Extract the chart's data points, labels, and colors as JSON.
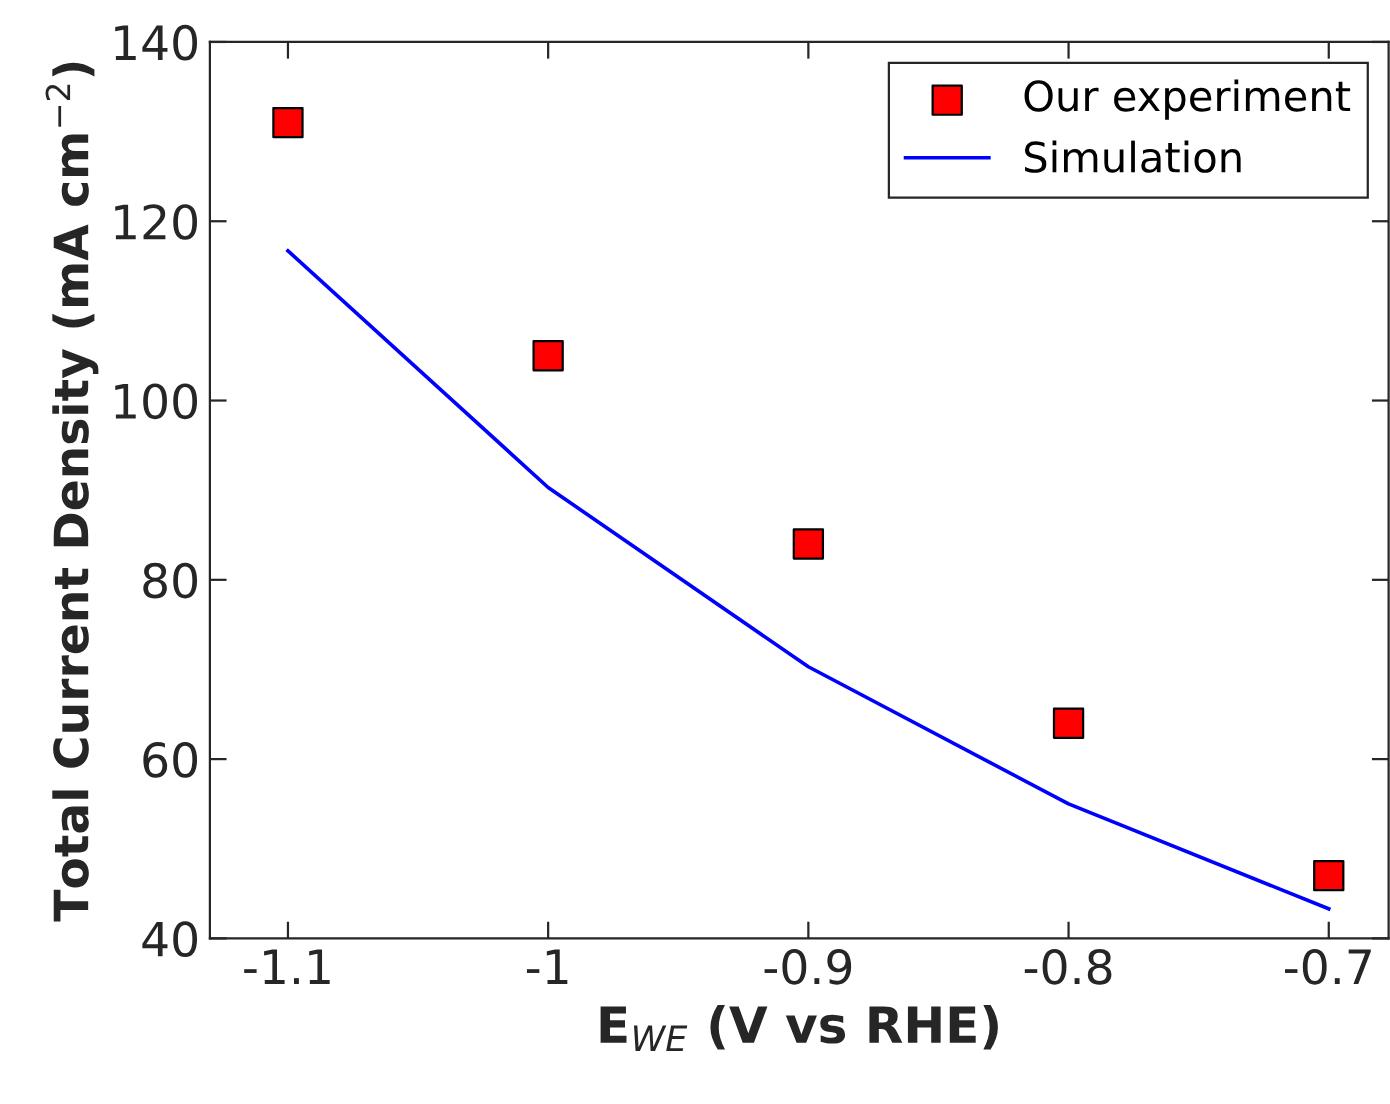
{
  "chart_data": {
    "type": "scatter",
    "xlabel": "E$_{WE}$ (V vs RHE)",
    "ylabel": "Total Current Density (mA cm$^{−2}$)",
    "x": [
      -1.1,
      -1.0,
      -0.9,
      -0.8,
      -0.7
    ],
    "series": [
      {
        "name": "Our experiment",
        "color": "#ff0000",
        "marker": "square",
        "values": [
          131,
          105,
          84,
          64,
          47
        ]
      },
      {
        "name": "Simulation",
        "type": "line",
        "color": "#0000ff",
        "marker": "none",
        "line_style": "solid",
        "values": [
          116.7,
          90.3,
          70.3,
          55,
          43.3
        ]
      }
    ],
    "xlim": [
      -1.13,
      -0.677
    ],
    "ylim": [
      40,
      140
    ],
    "xticks": [
      -1.1,
      -1,
      -0.9,
      -0.8,
      -0.7
    ],
    "yticks": [
      40,
      60,
      80,
      100,
      120,
      140
    ],
    "grid": false,
    "legend": "top right"
  }
}
